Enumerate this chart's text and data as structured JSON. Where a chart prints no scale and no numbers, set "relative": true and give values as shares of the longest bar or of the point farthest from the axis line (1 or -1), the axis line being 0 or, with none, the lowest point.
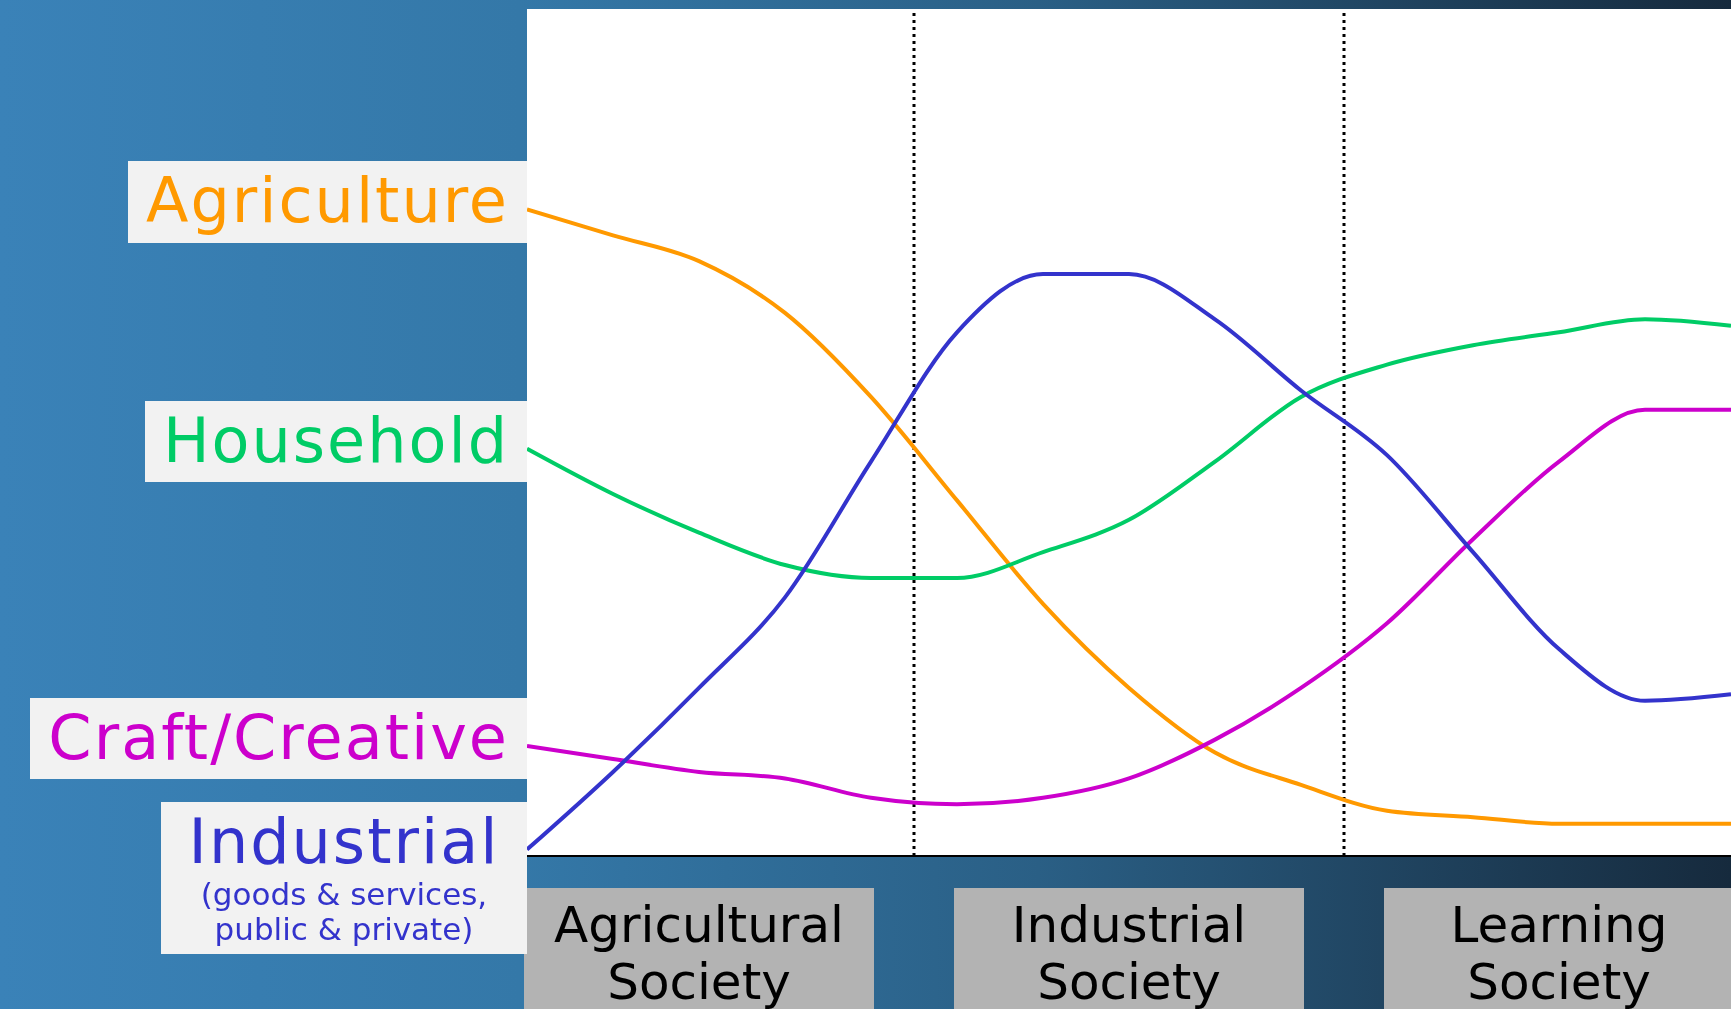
{
  "chart_data": {
    "type": "line",
    "relative": true,
    "legend": false,
    "grid": false,
    "marker": "none",
    "line_style": "solid",
    "categories": [
      null,
      null,
      "Agricultural Society",
      null,
      null,
      null,
      null,
      "Industrial Society",
      null,
      null,
      null,
      null,
      "Learning Society",
      null,
      null
    ],
    "annotations": [
      "(goods & services, public & private)"
    ],
    "series": [
      {
        "name": "Agriculture",
        "color": "#ff9900",
        "values": [
          1.0,
          0.96,
          0.92,
          0.84,
          0.71,
          0.55,
          0.39,
          0.26,
          0.16,
          0.11,
          0.07,
          0.06,
          0.05,
          0.05,
          0.05
        ]
      },
      {
        "name": "Household",
        "color": "#00cc66",
        "values": [
          0.63,
          0.56,
          0.5,
          0.45,
          0.43,
          0.43,
          0.47,
          0.52,
          0.61,
          0.71,
          0.76,
          0.79,
          0.81,
          0.83,
          0.82
        ]
      },
      {
        "name": "Craft/Creative",
        "color": "#cc00cc",
        "values": [
          0.17,
          0.15,
          0.13,
          0.12,
          0.09,
          0.08,
          0.09,
          0.12,
          0.18,
          0.26,
          0.36,
          0.49,
          0.61,
          0.69,
          0.69
        ]
      },
      {
        "name": "Industrial",
        "color": "#3333cc",
        "values": [
          0.01,
          0.13,
          0.26,
          0.4,
          0.61,
          0.81,
          0.9,
          0.9,
          0.83,
          0.72,
          0.62,
          0.47,
          0.32,
          0.24,
          0.25
        ]
      }
    ]
  }
}
